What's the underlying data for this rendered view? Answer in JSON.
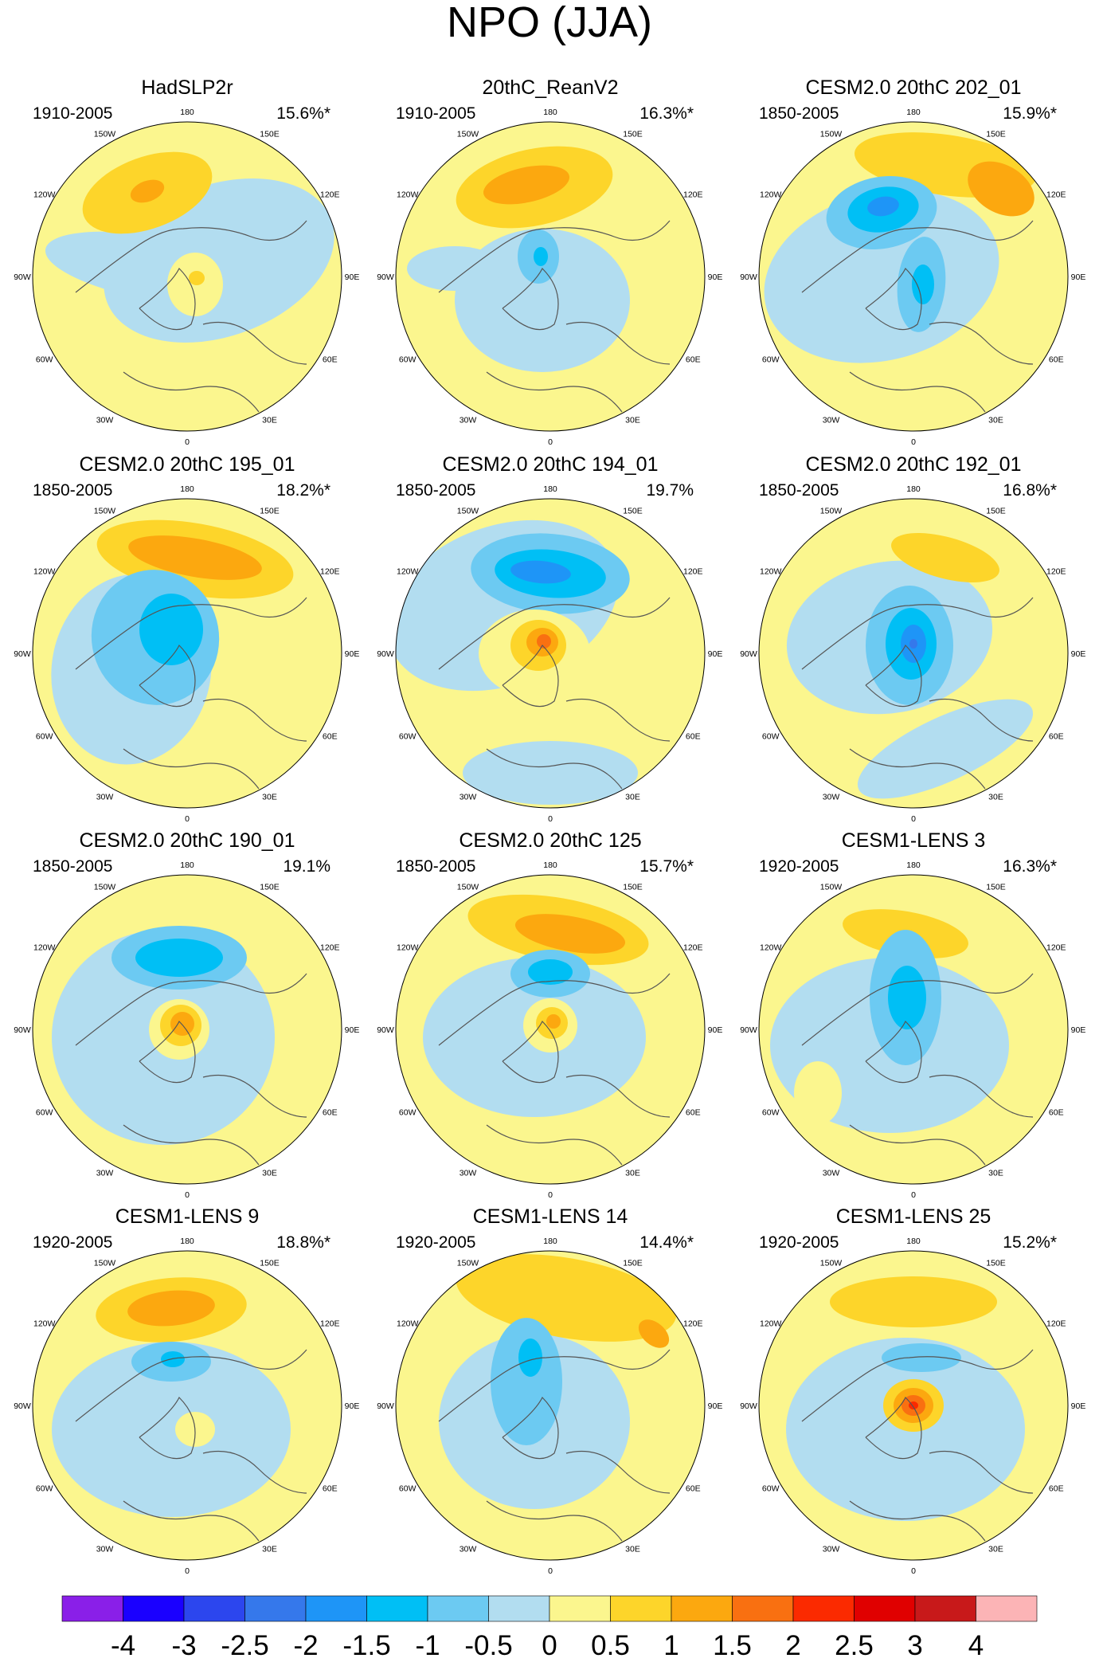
{
  "figure": {
    "title": "NPO (JJA)",
    "longitude_labels": [
      "180",
      "150E",
      "120E",
      "90E",
      "60E",
      "30E",
      "0",
      "30W",
      "60W",
      "90W",
      "120W",
      "150W"
    ]
  },
  "panels": [
    {
      "title": "HadSLP2r",
      "period": "1910-2005",
      "variance": "15.6%*"
    },
    {
      "title": "20thC_ReanV2",
      "period": "1910-2005",
      "variance": "16.3%*"
    },
    {
      "title": "CESM2.0 20thC 202_01",
      "period": "1850-2005",
      "variance": "15.9%*"
    },
    {
      "title": "CESM2.0 20thC 195_01",
      "period": "1850-2005",
      "variance": "18.2%*"
    },
    {
      "title": "CESM2.0 20thC 194_01",
      "period": "1850-2005",
      "variance": "19.7%"
    },
    {
      "title": "CESM2.0 20thC 192_01",
      "period": "1850-2005",
      "variance": "16.8%*"
    },
    {
      "title": "CESM2.0 20thC 190_01",
      "period": "1850-2005",
      "variance": "19.1%"
    },
    {
      "title": "CESM2.0 20thC 125",
      "period": "1850-2005",
      "variance": "15.7%*"
    },
    {
      "title": "CESM1-LENS 3",
      "period": "1920-2005",
      "variance": "16.3%*"
    },
    {
      "title": "CESM1-LENS 9",
      "period": "1920-2005",
      "variance": "18.8%*"
    },
    {
      "title": "CESM1-LENS 14",
      "period": "1920-2005",
      "variance": "14.4%*"
    },
    {
      "title": "CESM1-LENS 25",
      "period": "1920-2005",
      "variance": "15.2%*"
    }
  ],
  "colorbar": {
    "labels": [
      "-4",
      "-3",
      "-2.5",
      "-2",
      "-1.5",
      "-1",
      "-0.5",
      "0",
      "0.5",
      "1",
      "1.5",
      "2",
      "2.5",
      "3",
      "4"
    ],
    "colors": [
      "#8a1fe8",
      "#1a00ff",
      "#2c46ee",
      "#3578eb",
      "#1e95f7",
      "#00bff5",
      "#6ccaf2",
      "#b2ddf0",
      "#fbf68e",
      "#fdd52a",
      "#fca80f",
      "#f97011",
      "#fb2a00",
      "#e00000",
      "#c8191a",
      "#fcb4b6"
    ]
  },
  "colors": {
    "land_outline": "#555555",
    "circle_outline": "#000000"
  }
}
